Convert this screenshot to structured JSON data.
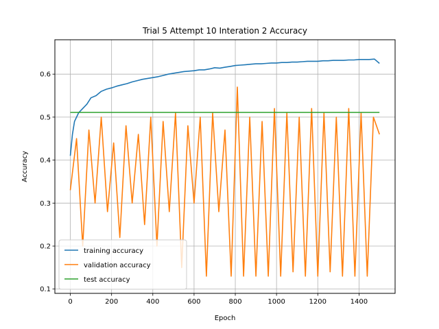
{
  "chart_data": {
    "type": "line",
    "title": "Trial 5 Attempt 10 Interation 2 Accuracy",
    "xlabel": "Epoch",
    "ylabel": "Accuracy",
    "xlim": [
      -75,
      1575
    ],
    "ylim": [
      0.09,
      0.68
    ],
    "xticks": [
      0,
      200,
      400,
      600,
      800,
      1000,
      1200,
      1400
    ],
    "yticks": [
      0.1,
      0.2,
      0.3,
      0.4,
      0.5,
      0.6
    ],
    "grid": true,
    "legend_position": "lower left",
    "series": [
      {
        "name": "training accuracy",
        "color": "#1f77b4",
        "x": [
          0,
          10,
          20,
          30,
          40,
          60,
          80,
          100,
          125,
          150,
          175,
          200,
          225,
          250,
          275,
          300,
          325,
          350,
          375,
          400,
          425,
          450,
          475,
          500,
          525,
          550,
          575,
          600,
          625,
          650,
          675,
          700,
          725,
          750,
          775,
          800,
          825,
          850,
          875,
          900,
          925,
          950,
          975,
          1000,
          1025,
          1050,
          1075,
          1100,
          1125,
          1150,
          1175,
          1200,
          1225,
          1250,
          1275,
          1300,
          1325,
          1350,
          1375,
          1400,
          1425,
          1450,
          1475,
          1499
        ],
        "y": [
          0.41,
          0.46,
          0.49,
          0.5,
          0.51,
          0.52,
          0.53,
          0.545,
          0.55,
          0.56,
          0.565,
          0.568,
          0.572,
          0.575,
          0.578,
          0.582,
          0.585,
          0.588,
          0.59,
          0.592,
          0.594,
          0.597,
          0.6,
          0.602,
          0.604,
          0.606,
          0.607,
          0.608,
          0.61,
          0.61,
          0.612,
          0.615,
          0.614,
          0.616,
          0.618,
          0.62,
          0.621,
          0.622,
          0.623,
          0.624,
          0.624,
          0.625,
          0.626,
          0.626,
          0.627,
          0.627,
          0.628,
          0.628,
          0.629,
          0.63,
          0.63,
          0.63,
          0.631,
          0.631,
          0.632,
          0.632,
          0.632,
          0.633,
          0.633,
          0.634,
          0.634,
          0.634,
          0.635,
          0.625
        ]
      },
      {
        "name": "validation accuracy",
        "color": "#ff7f0e",
        "x": [
          0,
          30,
          60,
          90,
          120,
          150,
          180,
          210,
          240,
          270,
          300,
          330,
          360,
          390,
          420,
          450,
          480,
          510,
          540,
          570,
          600,
          630,
          660,
          690,
          720,
          750,
          780,
          810,
          840,
          870,
          900,
          930,
          960,
          990,
          1020,
          1050,
          1080,
          1110,
          1140,
          1170,
          1200,
          1230,
          1260,
          1290,
          1320,
          1350,
          1380,
          1410,
          1440,
          1470,
          1499
        ],
        "y": [
          0.33,
          0.45,
          0.2,
          0.47,
          0.3,
          0.5,
          0.28,
          0.44,
          0.22,
          0.48,
          0.3,
          0.46,
          0.25,
          0.5,
          0.2,
          0.49,
          0.28,
          0.51,
          0.15,
          0.48,
          0.3,
          0.5,
          0.13,
          0.51,
          0.28,
          0.47,
          0.13,
          0.57,
          0.13,
          0.5,
          0.13,
          0.49,
          0.13,
          0.52,
          0.13,
          0.51,
          0.14,
          0.5,
          0.13,
          0.52,
          0.13,
          0.51,
          0.14,
          0.5,
          0.13,
          0.52,
          0.13,
          0.51,
          0.13,
          0.5,
          0.46
        ]
      },
      {
        "name": "test accuracy",
        "color": "#2ca02c",
        "x": [
          0,
          1499
        ],
        "y": [
          0.511,
          0.511
        ]
      }
    ]
  }
}
